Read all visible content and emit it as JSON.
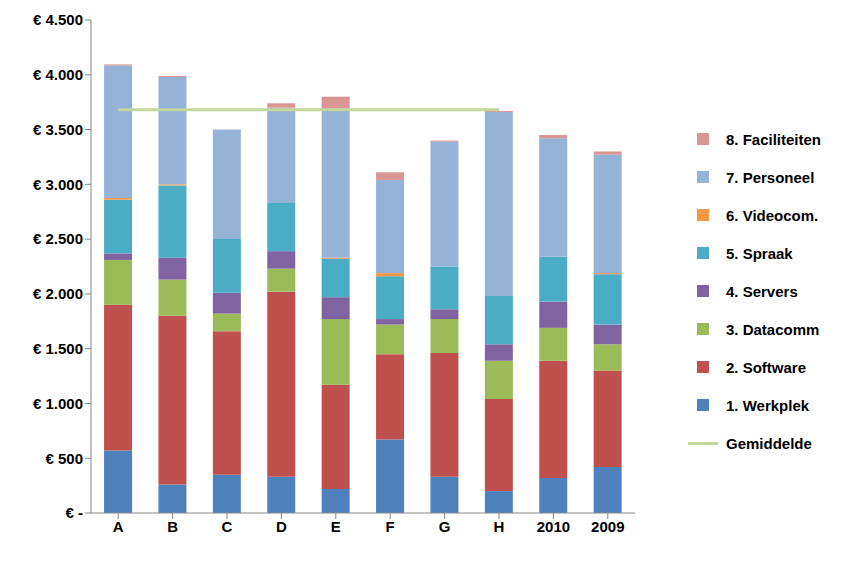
{
  "chart_data": {
    "type": "bar",
    "stacked": true,
    "grid": false,
    "legend": "right",
    "categories": [
      "A",
      "B",
      "C",
      "D",
      "E",
      "F",
      "G",
      "H",
      "2010",
      "2009"
    ],
    "ylim": [
      0,
      4500
    ],
    "yticks": [
      {
        "value": 0,
        "label": "€ -"
      },
      {
        "value": 500,
        "label": "€ 500"
      },
      {
        "value": 1000,
        "label": "€ 1.000"
      },
      {
        "value": 1500,
        "label": "€ 1.500"
      },
      {
        "value": 2000,
        "label": "€ 2.000"
      },
      {
        "value": 2500,
        "label": "€ 2.500"
      },
      {
        "value": 3000,
        "label": "€ 3.000"
      },
      {
        "value": 3500,
        "label": "€ 3.500"
      },
      {
        "value": 4000,
        "label": "€ 4.000"
      },
      {
        "value": 4500,
        "label": "€ 4.500"
      }
    ],
    "series": [
      {
        "name": "1. Werkplek",
        "color": "#4F81BD",
        "values": [
          570,
          260,
          350,
          330,
          220,
          670,
          330,
          200,
          320,
          420
        ]
      },
      {
        "name": "2. Software",
        "color": "#C0504D",
        "values": [
          1330,
          1540,
          1310,
          1690,
          950,
          780,
          1130,
          840,
          1070,
          880
        ]
      },
      {
        "name": "3. Datacomm",
        "color": "#9BBB59",
        "values": [
          410,
          330,
          160,
          210,
          600,
          270,
          310,
          350,
          300,
          240
        ]
      },
      {
        "name": "4. Servers",
        "color": "#8064A2",
        "values": [
          60,
          200,
          190,
          160,
          200,
          50,
          90,
          150,
          240,
          180
        ]
      },
      {
        "name": "5. Spraak",
        "color": "#4BACC6",
        "values": [
          490,
          660,
          490,
          440,
          350,
          390,
          390,
          440,
          410,
          460
        ]
      },
      {
        "name": "6. Videocom.",
        "color": "#F79646",
        "values": [
          15,
          10,
          0,
          0,
          10,
          30,
          0,
          0,
          0,
          10
        ]
      },
      {
        "name": "7. Personeel",
        "color": "#95B3D7",
        "values": [
          1210,
          980,
          1000,
          870,
          1360,
          850,
          1140,
          1680,
          1080,
          1080
        ]
      },
      {
        "name": "8. Faciliteiten",
        "color": "#D99694",
        "values": [
          10,
          10,
          0,
          40,
          110,
          70,
          10,
          10,
          30,
          30
        ]
      },
      {
        "name": "Gemiddelde",
        "color": "#C3D69B",
        "type": "line",
        "values": [
          3680,
          3680,
          3680,
          3680,
          3680,
          3680,
          3680,
          3680,
          null,
          null
        ]
      }
    ]
  }
}
